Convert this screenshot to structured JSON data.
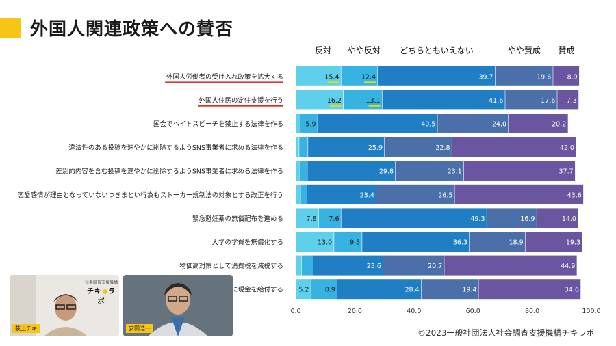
{
  "title": "外国人関連政策への賛否",
  "copyright": "©2023一般社団法人社会調査支援機構チキラボ",
  "chart_data": {
    "type": "bar",
    "orientation": "horizontal",
    "stacked": true,
    "legend_position": "top",
    "xlim": [
      0,
      100
    ],
    "xticks": [
      "0.0",
      "20.0",
      "40.0",
      "60.0",
      "80.0",
      "100.0"
    ],
    "categories": [
      "外国人労働者の受け入れ政策を拡大する",
      "外国人住民の定住支援を行う",
      "国会でヘイトスピーチを禁止する法律を作る",
      "違法性のある投稿を速やかに削除するようSNS事業者に求める法律を作る",
      "差別的内容を含む投稿を速やかに削除するようSNS事業者に求める法律を作る",
      "恋愛感情が理由となっていないつきまとい行為もストーカー規制法の対象とする改正を行う",
      "緊急避妊薬の無償配布を進める",
      "大学の学費を無償化する",
      "物価高対策として消費税を減税する",
      "に現金を給付する"
    ],
    "series": [
      {
        "name": "反対",
        "color": "#5fd0ec",
        "values": [
          15.4,
          16.2,
          1.6,
          1.2,
          1.5,
          1.7,
          7.8,
          13.0,
          2.0,
          5.2
        ],
        "labels": [
          "15.4",
          "16.2",
          "",
          "",
          "",
          "",
          "7.8",
          "13.0",
          "",
          "5.2"
        ]
      },
      {
        "name": "やや反対",
        "color": "#37b3e2",
        "values": [
          12.4,
          13.1,
          5.9,
          3.0,
          2.5,
          2.2,
          7.6,
          9.5,
          4.0,
          8.9
        ],
        "labels": [
          "12.4",
          "13.1",
          "5.9",
          "",
          "",
          "",
          "7.6",
          "9.5",
          "",
          "8.9"
        ]
      },
      {
        "name": "どちらともいえない",
        "color": "#1f7ec4",
        "values": [
          39.7,
          41.6,
          40.5,
          25.9,
          29.8,
          23.4,
          49.3,
          36.3,
          23.6,
          28.4
        ],
        "labels": [
          "39.7",
          "41.6",
          "40.5",
          "25.9",
          "29.8",
          "23.4",
          "49.3",
          "36.3",
          "23.6",
          "28.4"
        ]
      },
      {
        "name": "やや賛成",
        "color": "#4b6fa8",
        "values": [
          19.6,
          17.6,
          24.0,
          22.8,
          23.1,
          26.5,
          16.9,
          18.9,
          20.7,
          19.4
        ],
        "labels": [
          "19.6",
          "17.6",
          "24.0",
          "22.8",
          "23.1",
          "26.5",
          "16.9",
          "18.9",
          "20.7",
          "19.4"
        ]
      },
      {
        "name": "賛成",
        "color": "#6a55a0",
        "values": [
          8.9,
          7.3,
          20.2,
          42.0,
          37.7,
          43.6,
          14.0,
          19.3,
          44.9,
          34.6
        ],
        "labels": [
          "8.9",
          "7.3",
          "20.2",
          "42.0",
          "37.7",
          "43.6",
          "14.0",
          "19.3",
          "44.9",
          "34.6"
        ]
      }
    ],
    "highlighted_categories": [
      0,
      1
    ],
    "highlighted_values": [
      [
        0,
        0
      ],
      [
        0,
        1
      ],
      [
        1,
        0
      ],
      [
        1,
        1
      ]
    ],
    "highlight_color": "#f5d800",
    "underline_color": "#e03030"
  },
  "video": {
    "logo_small": "社会調査支援機構",
    "logo_left": "チキ",
    "logo_right": "ラボ",
    "participants": [
      "荻上チキ",
      "安田浩一"
    ]
  }
}
